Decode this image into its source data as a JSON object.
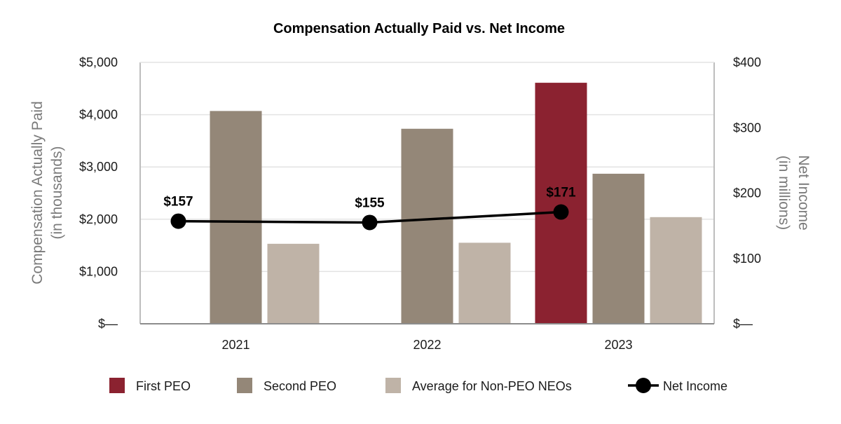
{
  "chart_data": {
    "type": "bar",
    "title": "Compensation Actually Paid vs. Net Income",
    "categories": [
      "2021",
      "2022",
      "2023"
    ],
    "series": [
      {
        "name": "First PEO",
        "axis": "left",
        "color": "#8b2230",
        "values": [
          null,
          null,
          4610
        ]
      },
      {
        "name": "Second PEO",
        "axis": "left",
        "color": "#948778",
        "values": [
          4070,
          3730,
          2870
        ]
      },
      {
        "name": "Average for Non-PEO NEOs",
        "axis": "left",
        "color": "#bfb3a7",
        "values": [
          1530,
          1550,
          2040
        ]
      }
    ],
    "line_series": {
      "name": "Net Income",
      "axis": "right",
      "color": "#000000",
      "values": [
        157,
        155,
        171
      ],
      "labels": [
        "$157",
        "$155",
        "$171"
      ]
    },
    "left_axis": {
      "title_line1": "Compensation Actually Paid",
      "title_line2": "(in thousands)",
      "ylim": [
        0,
        5000
      ],
      "ticks": [
        0,
        1000,
        2000,
        3000,
        4000,
        5000
      ],
      "tick_labels": [
        "$—",
        "$1,000",
        "$2,000",
        "$3,000",
        "$4,000",
        "$5,000"
      ]
    },
    "right_axis": {
      "title_line1": "Net Income",
      "title_line2": "(in millions)",
      "ylim": [
        0,
        400
      ],
      "ticks": [
        0,
        100,
        200,
        300,
        400
      ],
      "tick_labels": [
        "$—",
        "$100",
        "$200",
        "$300",
        "$400"
      ]
    },
    "grid": true,
    "legend_position": "bottom",
    "legend": [
      {
        "label": "First PEO",
        "kind": "box",
        "color": "#8b2230"
      },
      {
        "label": "Second PEO",
        "kind": "box",
        "color": "#948778"
      },
      {
        "label": "Average for Non-PEO NEOs",
        "kind": "box",
        "color": "#bfb3a7"
      },
      {
        "label": "Net Income",
        "kind": "line",
        "color": "#000000"
      }
    ]
  }
}
